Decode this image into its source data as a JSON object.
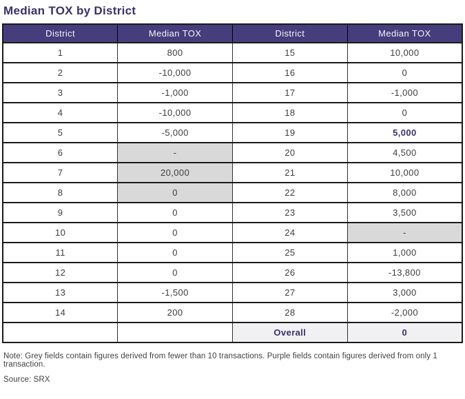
{
  "title": "Median TOX by District",
  "chart_data": {
    "type": "table",
    "title": "Median TOX by District",
    "columns": [
      "District",
      "Median TOX",
      "District",
      "Median TOX"
    ],
    "rows": [
      {
        "cells": [
          {
            "text": "1"
          },
          {
            "text": "800"
          },
          {
            "text": "15"
          },
          {
            "text": "10,000"
          }
        ]
      },
      {
        "cells": [
          {
            "text": "2"
          },
          {
            "text": "-10,000"
          },
          {
            "text": "16"
          },
          {
            "text": "0"
          }
        ]
      },
      {
        "cells": [
          {
            "text": "3"
          },
          {
            "text": "-1,000"
          },
          {
            "text": "17"
          },
          {
            "text": "-1,000"
          }
        ]
      },
      {
        "cells": [
          {
            "text": "4"
          },
          {
            "text": "-10,000"
          },
          {
            "text": "18"
          },
          {
            "text": "0"
          }
        ]
      },
      {
        "cells": [
          {
            "text": "5"
          },
          {
            "text": "-5,000"
          },
          {
            "text": "19"
          },
          {
            "text": "5,000",
            "style": "purple"
          }
        ]
      },
      {
        "cells": [
          {
            "text": "6"
          },
          {
            "text": "-",
            "style": "grey"
          },
          {
            "text": "20"
          },
          {
            "text": "4,500"
          }
        ]
      },
      {
        "cells": [
          {
            "text": "7"
          },
          {
            "text": "20,000",
            "style": "grey"
          },
          {
            "text": "21"
          },
          {
            "text": "10,000"
          }
        ]
      },
      {
        "cells": [
          {
            "text": "8"
          },
          {
            "text": "0",
            "style": "grey"
          },
          {
            "text": "22"
          },
          {
            "text": "8,000"
          }
        ]
      },
      {
        "cells": [
          {
            "text": "9"
          },
          {
            "text": "0"
          },
          {
            "text": "23"
          },
          {
            "text": "3,500"
          }
        ]
      },
      {
        "cells": [
          {
            "text": "10"
          },
          {
            "text": "0"
          },
          {
            "text": "24"
          },
          {
            "text": "-",
            "style": "grey"
          }
        ]
      },
      {
        "cells": [
          {
            "text": "11"
          },
          {
            "text": "0"
          },
          {
            "text": "25"
          },
          {
            "text": "1,000"
          }
        ]
      },
      {
        "cells": [
          {
            "text": "12"
          },
          {
            "text": "0"
          },
          {
            "text": "26"
          },
          {
            "text": "-13,800"
          }
        ]
      },
      {
        "cells": [
          {
            "text": "13"
          },
          {
            "text": "-1,500"
          },
          {
            "text": "27"
          },
          {
            "text": "3,000"
          }
        ]
      },
      {
        "cells": [
          {
            "text": "14"
          },
          {
            "text": "200"
          },
          {
            "text": "28"
          },
          {
            "text": "-2,000"
          }
        ]
      },
      {
        "cells": [
          {
            "text": ""
          },
          {
            "text": ""
          },
          {
            "text": "Overall",
            "style": "overall"
          },
          {
            "text": "0",
            "style": "overall"
          }
        ]
      }
    ]
  },
  "note": "Note: Grey fields contain figures derived from fewer than 10 transactions. Purple fields contain figures derived from only 1 transaction.",
  "source": "Source: SRX",
  "colors": {
    "header_bg": "#463d7d",
    "header_text": "#f5f4f9",
    "title": "#39306b",
    "grey_cell": "#d9d9d9",
    "overall_bg": "#f1f0f3",
    "accent_purple": "#39306b",
    "cell_text": "#3d3d3d",
    "border": "#1a1a1a"
  }
}
